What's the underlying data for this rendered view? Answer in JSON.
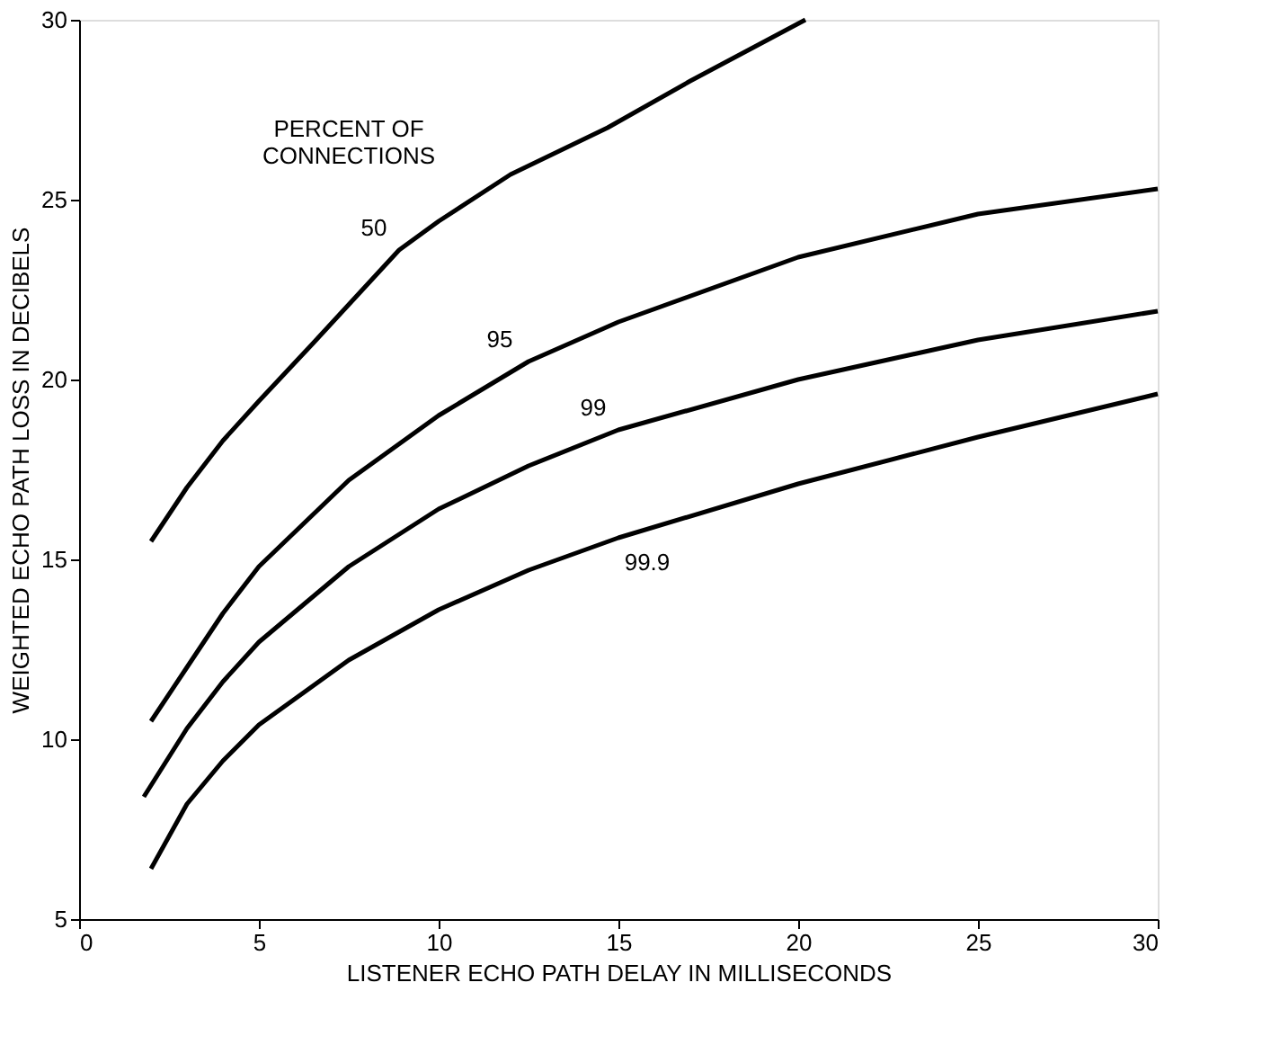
{
  "chart_data": {
    "type": "line",
    "xlabel": "LISTENER ECHO PATH DELAY IN MILLISECONDS",
    "ylabel": "WEIGHTED ECHO PATH LOSS IN DECIBELS",
    "xlim": [
      0,
      30
    ],
    "xticks": [
      0,
      5,
      10,
      15,
      20,
      25,
      30
    ],
    "ylim": [
      5,
      30
    ],
    "yticks": [
      5,
      10,
      15,
      20,
      25,
      30
    ],
    "grid": false,
    "legend": false,
    "marker": "none",
    "line_style": "solid",
    "series": [
      {
        "color": "#000000",
        "x": [
          2,
          3,
          4,
          5,
          6.5,
          8.9,
          10,
          12,
          14.7,
          17,
          20.2
        ],
        "values": [
          15.5,
          17,
          18.3,
          19.4,
          21,
          23.6,
          24.4,
          25.7,
          27,
          28.3,
          30
        ]
      },
      {
        "color": "#000000",
        "x": [
          2,
          3,
          4,
          5,
          7.5,
          10,
          12.5,
          15,
          20,
          25,
          30
        ],
        "values": [
          10.5,
          12,
          13.5,
          14.8,
          17.2,
          19,
          20.5,
          21.6,
          23.4,
          24.6,
          25.3
        ]
      },
      {
        "color": "#000000",
        "x": [
          1.8,
          3,
          4,
          5,
          7.5,
          10,
          12.5,
          15,
          20,
          25,
          30
        ],
        "values": [
          8.4,
          10.3,
          11.6,
          12.7,
          14.8,
          16.4,
          17.6,
          18.6,
          20,
          21.1,
          21.9
        ]
      },
      {
        "color": "#000000",
        "x": [
          2,
          3,
          4,
          5,
          7.5,
          10,
          12.5,
          15,
          20,
          25,
          30
        ],
        "values": [
          6.4,
          8.2,
          9.4,
          10.4,
          12.2,
          13.6,
          14.7,
          15.6,
          17.1,
          18.4,
          19.6
        ]
      }
    ],
    "annotations": [
      "PERCENT OF\nCONNECTIONS",
      {
        "text": "50",
        "x": 8.9,
        "y": 23.6
      },
      {
        "text": "95",
        "x": 12.5,
        "y": 20.5
      },
      {
        "text": "99",
        "x": 15,
        "y": 18.6
      },
      {
        "text": "99.9",
        "x": 15,
        "y": 15.6
      }
    ]
  }
}
